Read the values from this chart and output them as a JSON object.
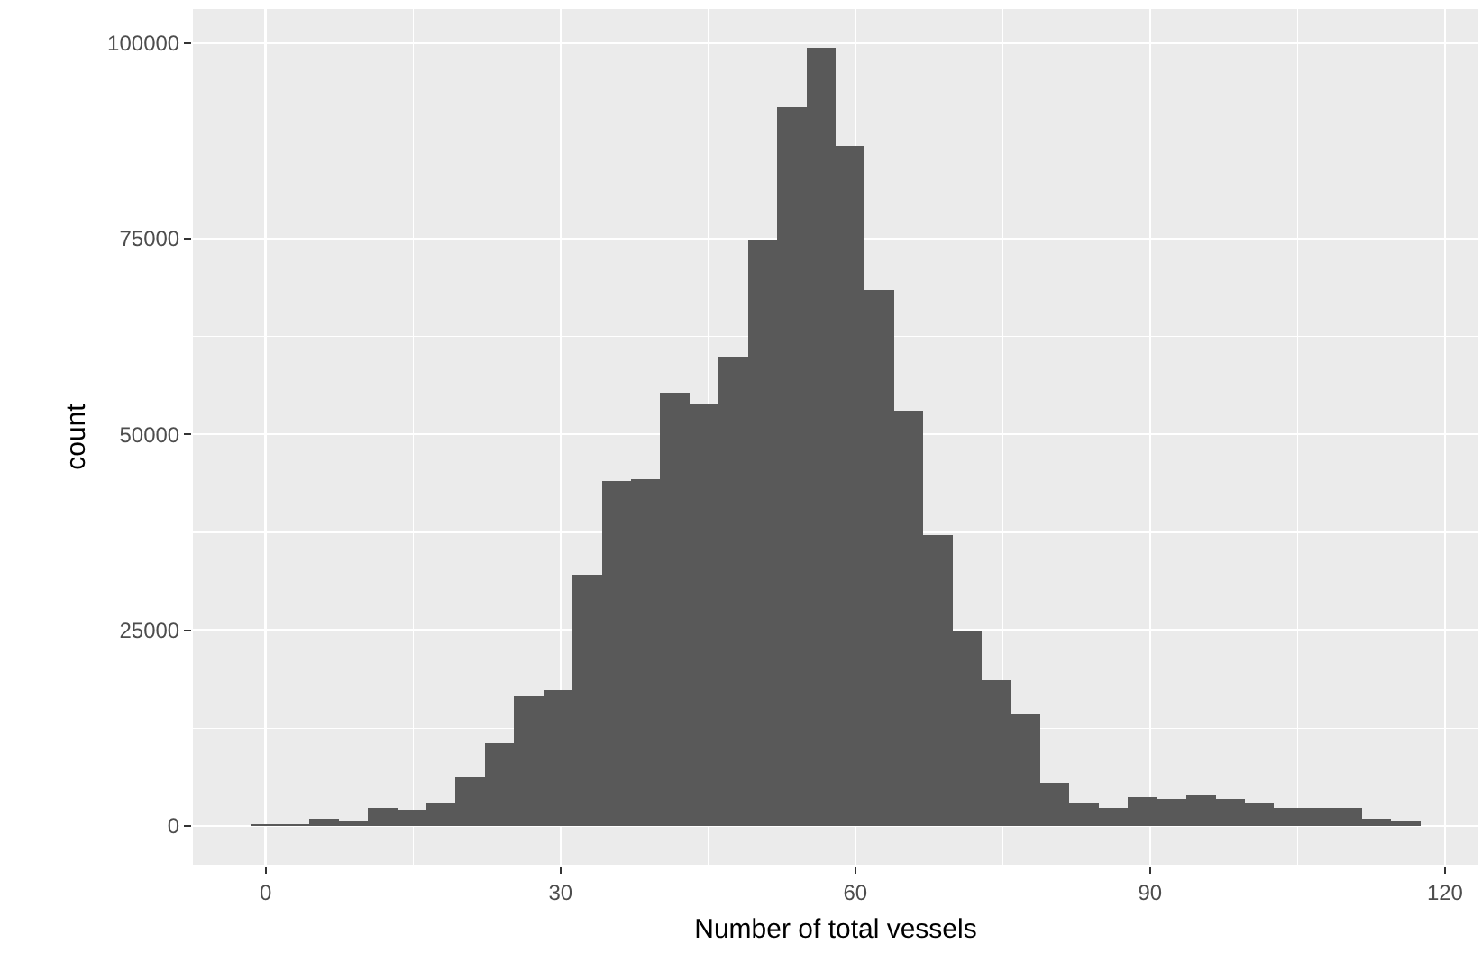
{
  "chart_data": {
    "type": "histogram",
    "xlabel": "Number of total vessels",
    "ylabel": "count",
    "color": "#595959",
    "bins": [
      -1.49,
      1.48,
      4.46,
      7.43,
      10.41,
      13.38,
      16.36,
      19.33,
      22.31,
      25.28,
      28.26,
      31.23,
      34.21,
      37.18,
      40.15,
      43.13,
      46.1,
      49.08,
      52.05,
      55.03,
      58.0,
      60.97,
      63.95,
      66.92,
      69.9,
      72.87,
      75.85,
      78.82,
      81.8,
      84.77,
      87.74,
      90.72,
      93.69,
      96.67,
      99.64,
      102.62,
      105.59,
      108.56,
      111.54,
      114.51,
      117.49
    ],
    "values": [
      200,
      200,
      900,
      700,
      2300,
      2100,
      2800,
      6200,
      10600,
      16500,
      17400,
      32100,
      44100,
      44300,
      55300,
      53900,
      59900,
      74800,
      91800,
      99400,
      86800,
      68400,
      53000,
      37200,
      24800,
      18600,
      14200,
      5500,
      3000,
      2300,
      3700,
      3400,
      3900,
      3400,
      3000,
      2300,
      2300,
      2300,
      900,
      500
    ],
    "xlim": [
      -7.4,
      123.4
    ],
    "ylim": [
      -4970,
      104340
    ],
    "xticks": [
      0,
      30,
      60,
      90,
      120
    ],
    "yticks": [
      0,
      25000,
      50000,
      75000,
      100000
    ],
    "grid": true
  }
}
